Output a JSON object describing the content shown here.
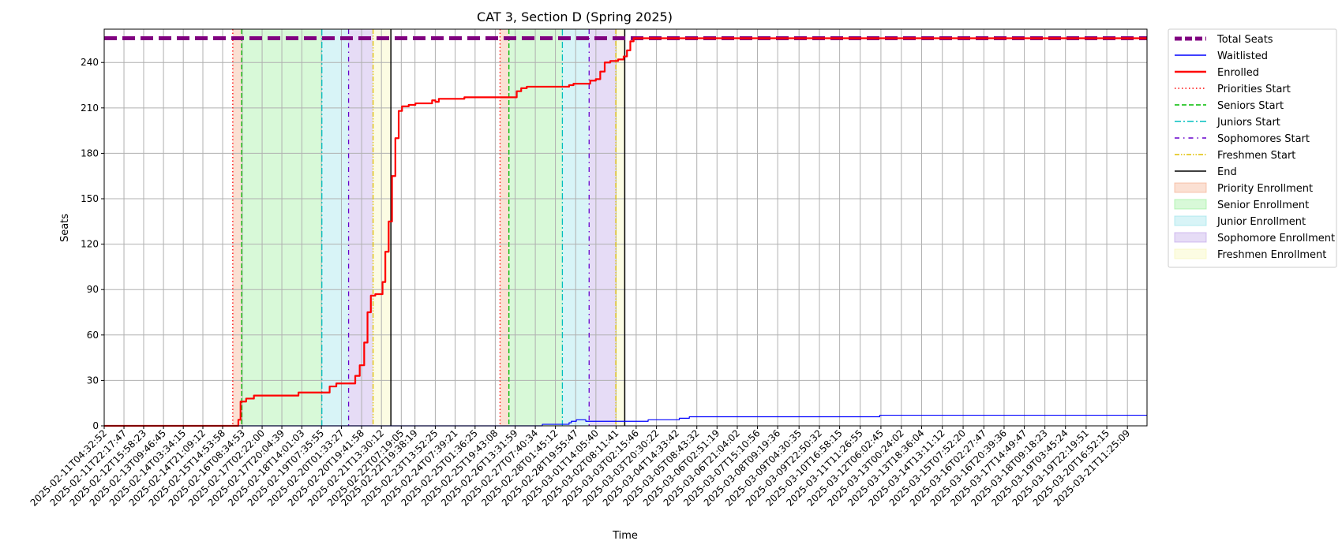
{
  "chart_data": {
    "type": "line",
    "title": "CAT 3, Section D (Spring 2025)",
    "xlabel": "Time",
    "ylabel": "Seats",
    "ylim": [
      0,
      262
    ],
    "yticks": [
      0,
      30,
      60,
      90,
      120,
      150,
      180,
      210,
      240
    ],
    "grid": true,
    "legend_position": "outside-right",
    "x_start": "2025-02-11T04:32:52",
    "x_end": "2025-03-22T05:00:00",
    "xtick_labels": [
      "2025-02-11T04:32:52",
      "2025-02-11T22:17:47",
      "2025-02-12T15:58:23",
      "2025-02-13T09:46:45",
      "2025-02-14T03:34:15",
      "2025-02-14T21:09:12",
      "2025-02-15T14:53:58",
      "2025-02-16T08:34:53",
      "2025-02-17T02:22:00",
      "2025-02-17T20:04:39",
      "2025-02-18T14:01:03",
      "2025-02-19T07:35:55",
      "2025-02-20T01:33:27",
      "2025-02-20T19:41:58",
      "2025-02-21T13:30:12",
      "2025-02-22T07:19:05",
      "2025-02-22T19:38:19",
      "2025-02-23T13:52:25",
      "2025-02-24T07:39:21",
      "2025-02-25T01:36:25",
      "2025-02-25T19:43:08",
      "2025-02-26T13:31:59",
      "2025-02-27T07:40:34",
      "2025-02-28T01:45:12",
      "2025-02-28T19:55:47",
      "2025-03-01T14:05:40",
      "2025-03-02T08:11:41",
      "2025-03-03T02:15:46",
      "2025-03-03T20:30:22",
      "2025-03-04T14:33:42",
      "2025-03-05T08:43:32",
      "2025-03-06T02:51:19",
      "2025-03-06T21:04:02",
      "2025-03-07T15:10:56",
      "2025-03-08T09:19:36",
      "2025-03-09T04:30:35",
      "2025-03-09T22:50:32",
      "2025-03-10T16:58:15",
      "2025-03-11T11:26:55",
      "2025-03-12T06:02:45",
      "2025-03-13T00:24:02",
      "2025-03-13T18:36:04",
      "2025-03-14T13:11:12",
      "2025-03-15T07:52:20",
      "2025-03-16T02:27:47",
      "2025-03-16T20:39:36",
      "2025-03-17T14:49:47",
      "2025-03-18T09:18:23",
      "2025-03-19T03:45:24",
      "2025-03-19T22:19:51",
      "2025-03-20T16:52:15",
      "2025-03-21T11:25:09"
    ],
    "total_seats": 256,
    "series": [
      {
        "name": "Total Seats",
        "color": "#800080",
        "style": "dashed",
        "points": [
          [
            "2025-02-11T04:32:52",
            256
          ],
          [
            "2025-03-22T05:00:00",
            256
          ]
        ]
      },
      {
        "name": "Waitlisted",
        "color": "#0000ff",
        "style": "solid",
        "points": [
          [
            "2025-02-11T04:32:52",
            0
          ],
          [
            "2025-02-27T07:40:34",
            0
          ],
          [
            "2025-02-27T14:00:00",
            1
          ],
          [
            "2025-02-28T11:00:00",
            1
          ],
          [
            "2025-02-28T14:00:00",
            2
          ],
          [
            "2025-02-28T16:00:00",
            3
          ],
          [
            "2025-02-28T20:30:00",
            4
          ],
          [
            "2025-03-01T05:00:00",
            3
          ],
          [
            "2025-03-03T12:00:00",
            3
          ],
          [
            "2025-03-03T13:00:00",
            4
          ],
          [
            "2025-03-04T16:00:00",
            4
          ],
          [
            "2025-03-04T17:00:00",
            5
          ],
          [
            "2025-03-05T00:00:00",
            5
          ],
          [
            "2025-03-05T02:00:00",
            6
          ],
          [
            "2025-03-12T04:00:00",
            6
          ],
          [
            "2025-03-12T05:00:00",
            7
          ],
          [
            "2025-03-22T05:00:00",
            7
          ]
        ]
      },
      {
        "name": "Enrolled",
        "color": "#ff0000",
        "style": "solid",
        "points": [
          [
            "2025-02-11T04:32:52",
            0
          ],
          [
            "2025-02-16T03:00:00",
            0
          ],
          [
            "2025-02-16T05:00:00",
            4
          ],
          [
            "2025-02-16T07:00:00",
            16
          ],
          [
            "2025-02-16T12:00:00",
            18
          ],
          [
            "2025-02-16T19:00:00",
            20
          ],
          [
            "2025-02-18T09:00:00",
            20
          ],
          [
            "2025-02-18T11:00:00",
            22
          ],
          [
            "2025-02-19T09:00:00",
            22
          ],
          [
            "2025-02-19T15:00:00",
            26
          ],
          [
            "2025-02-19T21:00:00",
            28
          ],
          [
            "2025-02-20T09:00:00",
            28
          ],
          [
            "2025-02-20T14:00:00",
            33
          ],
          [
            "2025-02-20T18:00:00",
            40
          ],
          [
            "2025-02-20T22:00:00",
            55
          ],
          [
            "2025-02-21T01:00:00",
            75
          ],
          [
            "2025-02-21T04:00:00",
            86
          ],
          [
            "2025-02-21T08:00:00",
            87
          ],
          [
            "2025-02-21T13:00:00",
            87
          ],
          [
            "2025-02-21T14:30:00",
            95
          ],
          [
            "2025-02-21T17:00:00",
            115
          ],
          [
            "2025-02-21T20:00:00",
            135
          ],
          [
            "2025-02-21T23:00:00",
            165
          ],
          [
            "2025-02-22T02:00:00",
            190
          ],
          [
            "2025-02-22T05:00:00",
            208
          ],
          [
            "2025-02-22T08:00:00",
            211
          ],
          [
            "2025-02-22T14:00:00",
            212
          ],
          [
            "2025-02-22T20:00:00",
            213
          ],
          [
            "2025-02-23T08:00:00",
            213
          ],
          [
            "2025-02-23T11:00:00",
            215
          ],
          [
            "2025-02-23T14:00:00",
            214
          ],
          [
            "2025-02-23T17:00:00",
            216
          ],
          [
            "2025-02-24T13:00:00",
            216
          ],
          [
            "2025-02-24T16:00:00",
            217
          ],
          [
            "2025-02-26T12:00:00",
            217
          ],
          [
            "2025-02-26T15:00:00",
            221
          ],
          [
            "2025-02-26T19:00:00",
            223
          ],
          [
            "2025-02-27T00:00:00",
            224
          ],
          [
            "2025-02-28T10:00:00",
            224
          ],
          [
            "2025-02-28T14:00:00",
            225
          ],
          [
            "2025-02-28T18:00:00",
            226
          ],
          [
            "2025-03-01T05:00:00",
            226
          ],
          [
            "2025-03-01T09:00:00",
            228
          ],
          [
            "2025-03-01T14:00:00",
            229
          ],
          [
            "2025-03-01T18:00:00",
            234
          ],
          [
            "2025-03-01T22:00:00",
            240
          ],
          [
            "2025-03-02T03:00:00",
            241
          ],
          [
            "2025-03-02T10:00:00",
            242
          ],
          [
            "2025-03-02T15:00:00",
            244
          ],
          [
            "2025-03-02T18:00:00",
            248
          ],
          [
            "2025-03-02T21:00:00",
            254
          ],
          [
            "2025-03-03T00:00:00",
            256
          ],
          [
            "2025-03-22T05:00:00",
            256
          ]
        ]
      }
    ],
    "events": [
      {
        "name": "Priorities Start",
        "x": "2025-02-16T00:00:00",
        "color": "#ff0000",
        "style": "dotted"
      },
      {
        "name": "Seniors Start",
        "x": "2025-02-16T08:00:00",
        "color": "#00bb00",
        "style": "dashed"
      },
      {
        "name": "Juniors Start",
        "x": "2025-02-19T08:00:00",
        "color": "#00bfbf",
        "style": "dashdot"
      },
      {
        "name": "Sophomores Start",
        "x": "2025-02-20T08:00:00",
        "color": "#6600cc",
        "style": "dashdot-loose"
      },
      {
        "name": "Freshmen Start",
        "x": "2025-02-21T06:00:00",
        "color": "#e0c000",
        "style": "dashdotdot"
      },
      {
        "name": "End",
        "x": "2025-02-21T22:00:00",
        "color": "#000000",
        "style": "solid"
      },
      {
        "name": "Priorities Start",
        "x": "2025-02-26T00:00:00",
        "color": "#ff0000",
        "style": "dotted"
      },
      {
        "name": "Seniors Start",
        "x": "2025-02-26T08:00:00",
        "color": "#00bb00",
        "style": "dashed"
      },
      {
        "name": "Juniors Start",
        "x": "2025-02-28T08:00:00",
        "color": "#00bfbf",
        "style": "dashdot"
      },
      {
        "name": "Sophomores Start",
        "x": "2025-03-01T08:00:00",
        "color": "#6600cc",
        "style": "dashdot-loose"
      },
      {
        "name": "Freshmen Start",
        "x": "2025-03-02T08:00:00",
        "color": "#e0c000",
        "style": "dashdotdot"
      },
      {
        "name": "End",
        "x": "2025-03-02T16:00:00",
        "color": "#000000",
        "style": "solid"
      }
    ],
    "periods": [
      {
        "name": "Priority Enrollment",
        "start": "2025-02-16T00:00:00",
        "end": "2025-02-16T08:00:00",
        "color": "#f4a582"
      },
      {
        "name": "Senior Enrollment",
        "start": "2025-02-16T08:00:00",
        "end": "2025-02-19T08:00:00",
        "color": "#90ee90"
      },
      {
        "name": "Junior Enrollment",
        "start": "2025-02-19T08:00:00",
        "end": "2025-02-20T08:00:00",
        "color": "#90e0e8"
      },
      {
        "name": "Sophomore Enrollment",
        "start": "2025-02-20T08:00:00",
        "end": "2025-02-21T06:00:00",
        "color": "#b89ae6"
      },
      {
        "name": "Freshmen Enrollment",
        "start": "2025-02-21T06:00:00",
        "end": "2025-02-21T22:00:00",
        "color": "#f5f5b0"
      },
      {
        "name": "Priority Enrollment",
        "start": "2025-02-26T00:00:00",
        "end": "2025-02-26T08:00:00",
        "color": "#f4a582"
      },
      {
        "name": "Senior Enrollment",
        "start": "2025-02-26T08:00:00",
        "end": "2025-02-28T08:00:00",
        "color": "#90ee90"
      },
      {
        "name": "Junior Enrollment",
        "start": "2025-02-28T08:00:00",
        "end": "2025-03-01T08:00:00",
        "color": "#90e0e8"
      },
      {
        "name": "Sophomore Enrollment",
        "start": "2025-03-01T08:00:00",
        "end": "2025-03-02T08:00:00",
        "color": "#b89ae6"
      },
      {
        "name": "Freshmen Enrollment",
        "start": "2025-03-02T08:00:00",
        "end": "2025-03-02T16:00:00",
        "color": "#f5f5b0"
      }
    ],
    "legend": [
      {
        "label": "Total Seats",
        "kind": "line",
        "color": "#800080",
        "style": "dashed-thick"
      },
      {
        "label": "Waitlisted",
        "kind": "line",
        "color": "#0000ff",
        "style": "solid"
      },
      {
        "label": "Enrolled",
        "kind": "line",
        "color": "#ff0000",
        "style": "solid-thick"
      },
      {
        "label": "Priorities Start",
        "kind": "line",
        "color": "#ff0000",
        "style": "dotted"
      },
      {
        "label": "Seniors Start",
        "kind": "line",
        "color": "#00bb00",
        "style": "dashed"
      },
      {
        "label": "Juniors Start",
        "kind": "line",
        "color": "#00bfbf",
        "style": "dashdot"
      },
      {
        "label": "Sophomores Start",
        "kind": "line",
        "color": "#6600cc",
        "style": "dashdot-loose"
      },
      {
        "label": "Freshmen Start",
        "kind": "line",
        "color": "#e0c000",
        "style": "dashdotdot"
      },
      {
        "label": "End",
        "kind": "line",
        "color": "#000000",
        "style": "solid"
      },
      {
        "label": "Priority Enrollment",
        "kind": "patch",
        "color": "#f4a582"
      },
      {
        "label": "Senior Enrollment",
        "kind": "patch",
        "color": "#90ee90"
      },
      {
        "label": "Junior Enrollment",
        "kind": "patch",
        "color": "#90e0e8"
      },
      {
        "label": "Sophomore Enrollment",
        "kind": "patch",
        "color": "#b89ae6"
      },
      {
        "label": "Freshmen Enrollment",
        "kind": "patch",
        "color": "#f5f5b0"
      }
    ]
  }
}
